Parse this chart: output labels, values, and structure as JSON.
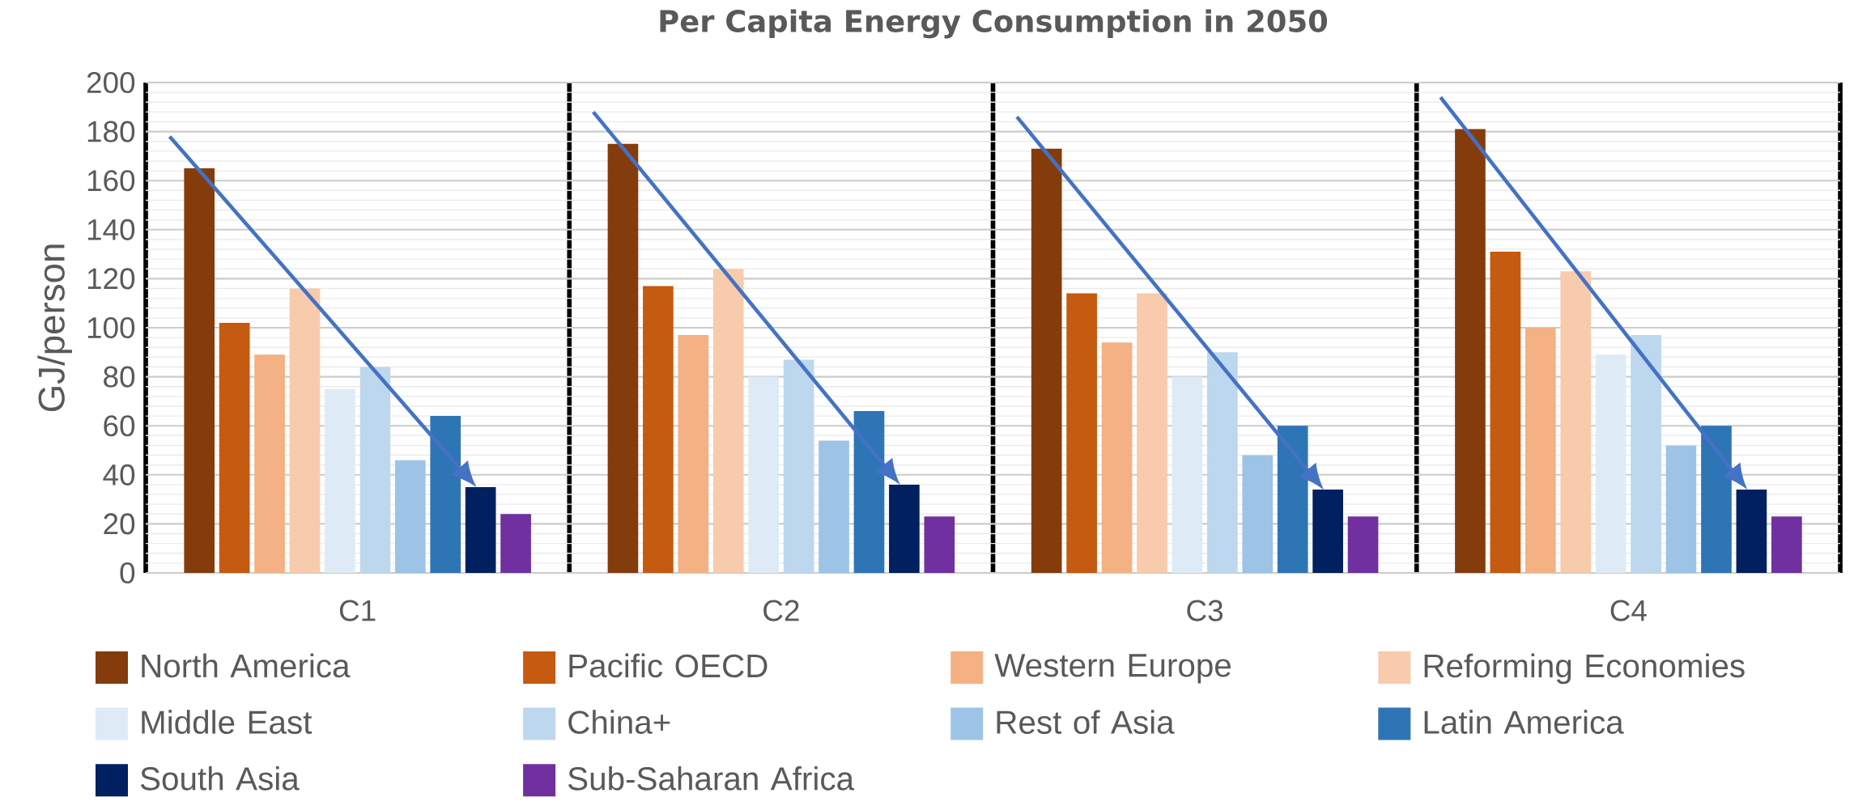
{
  "chart_data": {
    "type": "bar",
    "title": "Per Capita Energy Consumption in 2050",
    "ylabel": "GJ/person",
    "categories": [
      "C1",
      "C2",
      "C3",
      "C4"
    ],
    "series": [
      {
        "name": "North America",
        "color": "#843c0c",
        "values": [
          165,
          175,
          173,
          181
        ]
      },
      {
        "name": "Pacific OECD",
        "color": "#c55a11",
        "values": [
          102,
          117,
          114,
          131
        ]
      },
      {
        "name": "Western Europe",
        "color": "#f4b183",
        "values": [
          89,
          97,
          94,
          100
        ]
      },
      {
        "name": "Reforming Economies",
        "color": "#f8cbad",
        "values": [
          116,
          124,
          114,
          123
        ]
      },
      {
        "name": "Middle East",
        "color": "#deebf7",
        "values": [
          75,
          80,
          80,
          89
        ]
      },
      {
        "name": "China+",
        "color": "#bdd7ee",
        "values": [
          84,
          87,
          90,
          97
        ]
      },
      {
        "name": "Rest of Asia",
        "color": "#9dc3e6",
        "values": [
          46,
          54,
          48,
          52
        ]
      },
      {
        "name": "Latin America",
        "color": "#2e75b6",
        "values": [
          64,
          66,
          60,
          60
        ]
      },
      {
        "name": "South Asia",
        "color": "#002060",
        "values": [
          35,
          36,
          34,
          34
        ]
      },
      {
        "name": "Sub-Saharan Africa",
        "color": "#7030a0",
        "values": [
          24,
          23,
          23,
          23
        ]
      }
    ],
    "ylim": [
      0,
      200
    ],
    "yticks": [
      0,
      20,
      40,
      60,
      80,
      100,
      120,
      140,
      160,
      180,
      200
    ],
    "grid": true,
    "legend": "bottom"
  }
}
